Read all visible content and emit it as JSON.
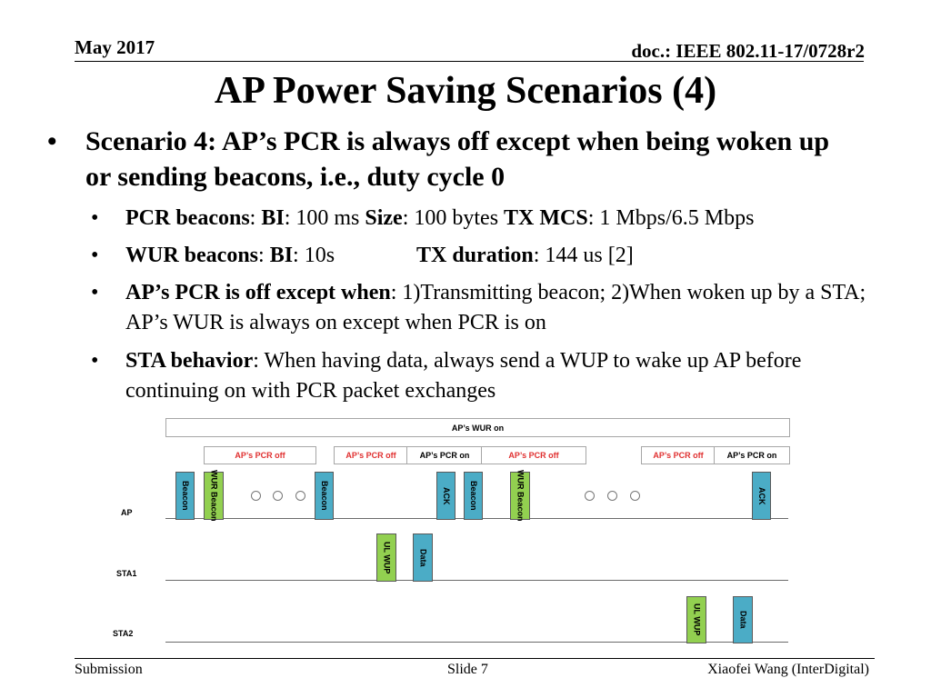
{
  "header": {
    "date": "May 2017",
    "doc": "doc.: IEEE 802.11-17/0728r2"
  },
  "title": "AP Power Saving Scenarios (4)",
  "main_bullet": {
    "text": "Scenario 4: AP’s PCR is always off except when being woken up or sending beacons, i.e., duty cycle 0"
  },
  "sub_bullets": [
    {
      "segments": [
        {
          "t": "PCR beacons",
          "b": true
        },
        {
          "t": ": ",
          "b": false
        },
        {
          "t": "BI",
          "b": true
        },
        {
          "t": ": 100 ms  ",
          "b": false
        },
        {
          "t": "Size",
          "b": true
        },
        {
          "t": ": 100 bytes  ",
          "b": false
        },
        {
          "t": "TX MCS",
          "b": true
        },
        {
          "t": ": 1 Mbps/6.5 Mbps",
          "b": false
        }
      ]
    },
    {
      "segments": [
        {
          "t": "WUR beacons",
          "b": true
        },
        {
          "t": ": ",
          "b": false
        },
        {
          "t": "BI",
          "b": true
        },
        {
          "t": ": 10s",
          "b": false
        }
      ],
      "segments2": [
        {
          "t": "TX duration",
          "b": true
        },
        {
          "t": ": 144 us [2]",
          "b": false
        }
      ]
    },
    {
      "segments": [
        {
          "t": "AP’s PCR is off except when",
          "b": true
        },
        {
          "t": ": 1)Transmitting beacon; 2)When woken up by a STA; AP’s WUR is always on except when PCR is on",
          "b": false
        }
      ]
    },
    {
      "segments": [
        {
          "t": "STA behavior",
          "b": true
        },
        {
          "t": ": When having data, always send a WUP to wake up AP before continuing on with PCR packet exchanges",
          "b": false
        }
      ]
    }
  ],
  "diagram": {
    "wur_on_label": "AP’s WUR on",
    "pcr_states": [
      {
        "label": "AP’s PCR off",
        "state": "off"
      },
      {
        "label": "AP’s PCR off",
        "state": "off"
      },
      {
        "label": "AP’s PCR on",
        "state": "on"
      },
      {
        "label": "AP’s PCR off",
        "state": "off"
      },
      {
        "label": "AP’s PCR off",
        "state": "off"
      },
      {
        "label": "AP’s PCR on",
        "state": "on"
      }
    ],
    "timelines": [
      {
        "label": "AP"
      },
      {
        "label": "STA1"
      },
      {
        "label": "STA2"
      }
    ],
    "packets": [
      {
        "label": "Beacon",
        "color": "blue"
      },
      {
        "label": "WUR Beacon",
        "color": "green"
      },
      {
        "label": "Beacon",
        "color": "blue"
      },
      {
        "label": "ACK",
        "color": "blue"
      },
      {
        "label": "Beacon",
        "color": "blue"
      },
      {
        "label": "WUR Beacon",
        "color": "green"
      },
      {
        "label": "ACK",
        "color": "blue"
      },
      {
        "label": "UL WUP",
        "color": "green"
      },
      {
        "label": "Data",
        "color": "blue"
      },
      {
        "label": "UL WUP",
        "color": "green"
      },
      {
        "label": "Data",
        "color": "blue"
      }
    ],
    "colors": {
      "blue": "#4bacc6",
      "green": "#92d050",
      "off_text": "#e03030"
    }
  },
  "footer": {
    "left": "Submission",
    "center": "Slide 7",
    "right": "Xiaofei Wang (InterDigital)"
  }
}
